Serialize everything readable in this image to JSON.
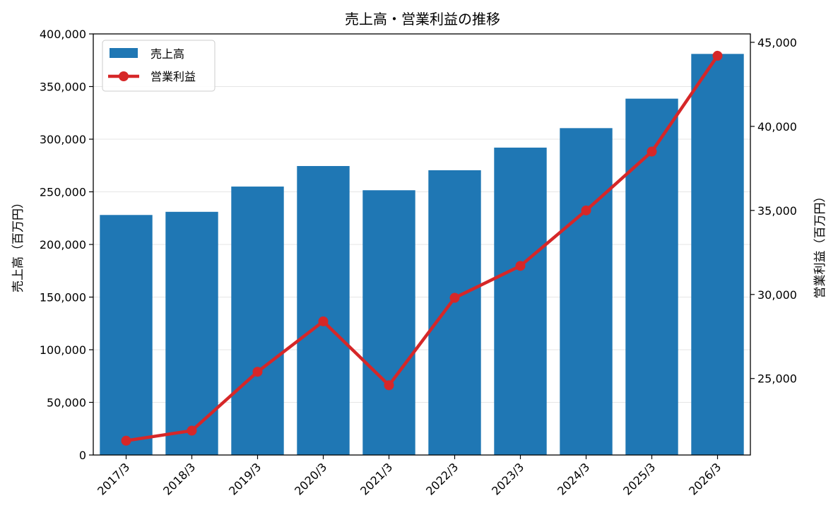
{
  "chart_data": {
    "type": "bar",
    "title": "売上高・営業利益の推移",
    "categories": [
      "2017/3",
      "2018/3",
      "2019/3",
      "2020/3",
      "2021/3",
      "2022/3",
      "2023/3",
      "2024/3",
      "2025/3",
      "2026/3"
    ],
    "series": [
      {
        "name": "売上高",
        "type": "bar",
        "axis": "left",
        "color": "#1f77b4",
        "values": [
          228000,
          231000,
          255000,
          274500,
          251500,
          270500,
          292000,
          310500,
          338500,
          381000
        ]
      },
      {
        "name": "営業利益",
        "type": "line",
        "axis": "right",
        "color": "#d62728",
        "values": [
          21300,
          21900,
          25400,
          28400,
          24600,
          29800,
          31700,
          35000,
          38500,
          44200
        ]
      }
    ],
    "ylabel_left": "売上高（百万円）",
    "ylabel_right": "営業利益（百万円）",
    "ylim_left": [
      0,
      400000
    ],
    "ylim_right": [
      20450,
      45500
    ],
    "yticks_left": [
      "0",
      "50,000",
      "100,000",
      "150,000",
      "200,000",
      "250,000",
      "300,000",
      "350,000",
      "400,000"
    ],
    "yticks_right": [
      "25,000",
      "30,000",
      "35,000",
      "40,000",
      "45,000"
    ],
    "grid": "horizontal",
    "legend_position": "top-left"
  }
}
